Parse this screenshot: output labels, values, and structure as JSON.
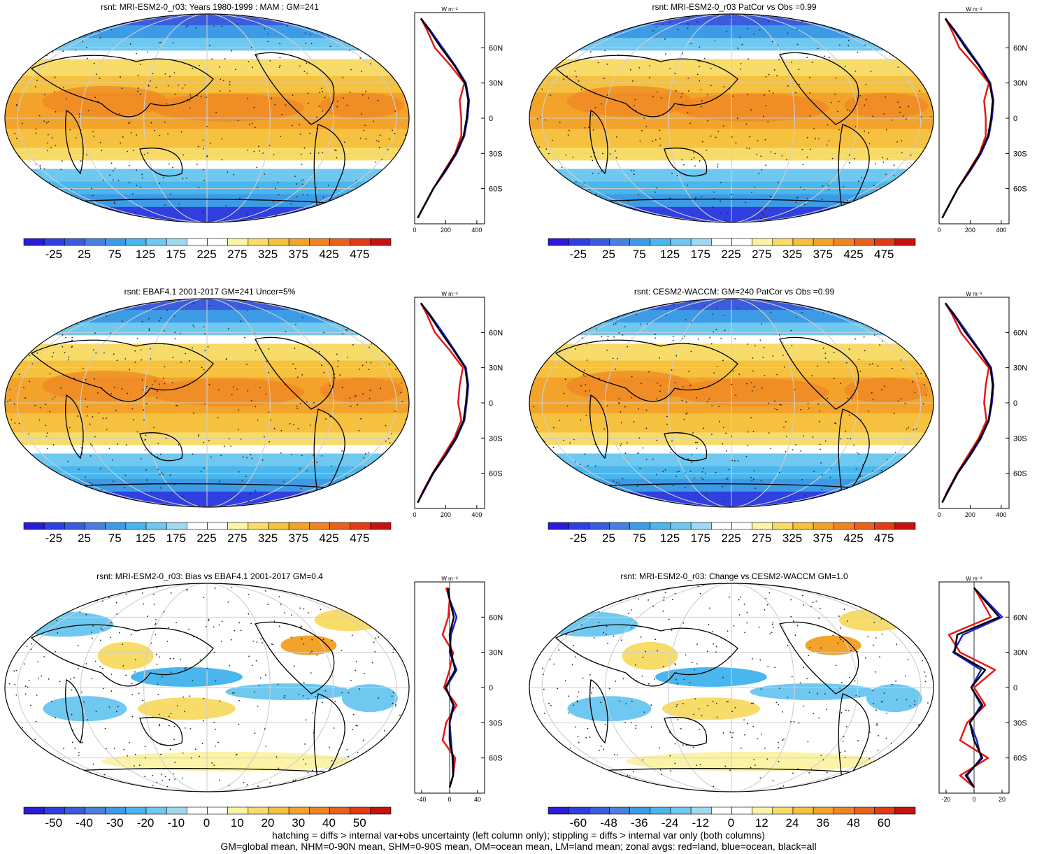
{
  "colors": {
    "full": [
      "#2b1bd6",
      "#2f3fe0",
      "#3a5cdd",
      "#4a7ee0",
      "#3d9be6",
      "#49b6ee",
      "#6fc8f0",
      "#9fd8f0",
      "#ffffff",
      "#ffffff",
      "#fbf3a6",
      "#f8dc6a",
      "#f5c13e",
      "#f3a32a",
      "#ee8524",
      "#e8621c",
      "#e33b15",
      "#c8100f"
    ],
    "diff": [
      "#2b1bd6",
      "#2f3fe0",
      "#3a5cdd",
      "#4a7ee0",
      "#3d9be6",
      "#49b6ee",
      "#6fc8f0",
      "#9fd8f0",
      "#ffffff",
      "#ffffff",
      "#fbf3a6",
      "#f8dc6a",
      "#f5c13e",
      "#f3a32a",
      "#ee8524",
      "#e8621c",
      "#e33b15",
      "#c8100f"
    ],
    "land": "#e8171a",
    "ocean": "#1a22d8",
    "all": "#000000"
  },
  "panels": [
    {
      "title": "rsnt: MRI-ESM2-0_r03: Years 1980-1999 : MAM : GM=241",
      "kind": "full",
      "cbar_labels": [
        "-25",
        "25",
        "75",
        "125",
        "175",
        "225",
        "275",
        "325",
        "375",
        "425",
        "475"
      ],
      "zonal_unit": "W m⁻²",
      "zonal_xticks": [
        "0",
        "200",
        "400"
      ],
      "zonal_xlim": [
        0,
        450
      ],
      "lat_labels": [
        "60N",
        "30N",
        "0",
        "30S",
        "60S"
      ]
    },
    {
      "title": "rsnt: MRI-ESM2-0_r03 PatCor vs Obs =0.99",
      "kind": "full",
      "cbar_labels": [
        "-25",
        "25",
        "75",
        "125",
        "175",
        "225",
        "275",
        "325",
        "375",
        "425",
        "475"
      ],
      "zonal_unit": "W m⁻²",
      "zonal_xticks": [
        "0",
        "200",
        "400"
      ],
      "zonal_xlim": [
        0,
        450
      ],
      "lat_labels": [
        "60N",
        "30N",
        "0",
        "30S",
        "60S"
      ]
    },
    {
      "title": "rsnt: EBAF4.1 2001-2017 GM=241 Uncer=5%",
      "kind": "full",
      "cbar_labels": [
        "-25",
        "25",
        "75",
        "125",
        "175",
        "225",
        "275",
        "325",
        "375",
        "425",
        "475"
      ],
      "zonal_unit": "W m⁻²",
      "zonal_xticks": [
        "0",
        "200",
        "400"
      ],
      "zonal_xlim": [
        0,
        450
      ],
      "lat_labels": [
        "60N",
        "30N",
        "0",
        "30S",
        "60S"
      ]
    },
    {
      "title": "rsnt: CESM2-WACCM: GM=240 PatCor vs Obs =0.99",
      "kind": "full",
      "cbar_labels": [
        "-25",
        "25",
        "75",
        "125",
        "175",
        "225",
        "275",
        "325",
        "375",
        "425",
        "475"
      ],
      "zonal_unit": "W m⁻²",
      "zonal_xticks": [
        "0",
        "200",
        "400"
      ],
      "zonal_xlim": [
        0,
        450
      ],
      "lat_labels": [
        "60N",
        "30N",
        "0",
        "30S",
        "60S"
      ]
    },
    {
      "title": "rsnt: MRI-ESM2-0_r03: Bias vs EBAF4.1 2001-2017 GM=0.4",
      "kind": "diff",
      "cbar_labels": [
        "-50",
        "-40",
        "-30",
        "-20",
        "-10",
        "0",
        "10",
        "20",
        "30",
        "40",
        "50"
      ],
      "zonal_unit": "W m⁻²",
      "zonal_xticks": [
        "-40",
        "0",
        "40"
      ],
      "zonal_xlim": [
        -50,
        50
      ],
      "lat_labels": [
        "60N",
        "30N",
        "0",
        "30S",
        "60S"
      ]
    },
    {
      "title": "rsnt: MRI-ESM2-0_r03: Change vs CESM2-WACCM GM=1.0",
      "kind": "diff",
      "cbar_labels": [
        "-60",
        "-48",
        "-36",
        "-24",
        "-12",
        "0",
        "12",
        "24",
        "36",
        "48",
        "60"
      ],
      "zonal_unit": "W m⁻²",
      "zonal_xticks": [
        "-20",
        "0",
        "20"
      ],
      "zonal_xlim": [
        -25,
        25
      ],
      "lat_labels": [
        "60N",
        "30N",
        "0",
        "30S",
        "60S"
      ]
    }
  ],
  "footer": {
    "line1": "hatching = diffs > internal var+obs uncertainty (left column only); stippling = diffs > internal var only (both columns)",
    "line2": "GM=global mean, NHM=0-90N mean, SHM=0-90S mean, OM=ocean mean, LM=land mean; zonal avgs: red=land, blue=ocean, black=all"
  },
  "chart_data": [
    {
      "type": "line",
      "title": "rsnt: MRI-ESM2-0_r03: Years 1980-1999 : MAM : GM=241",
      "xlabel": "W m-2",
      "lat": [
        85,
        75,
        60,
        45,
        30,
        15,
        0,
        -15,
        -30,
        -45,
        -60,
        -75,
        -85
      ],
      "series": [
        {
          "color": "land",
          "values": [
            40,
            80,
            130,
            230,
            320,
            290,
            300,
            300,
            260,
            190,
            120,
            60,
            20
          ]
        },
        {
          "color": "ocean",
          "values": [
            40,
            100,
            180,
            260,
            330,
            350,
            340,
            320,
            270,
            200,
            120,
            60,
            20
          ]
        },
        {
          "color": "all",
          "values": [
            40,
            95,
            170,
            255,
            325,
            345,
            335,
            315,
            265,
            195,
            120,
            60,
            20
          ]
        }
      ]
    },
    {
      "type": "line",
      "title": "rsnt: MRI-ESM2-0_r03 PatCor vs Obs =0.99",
      "xlabel": "W m-2",
      "lat": [
        85,
        75,
        60,
        45,
        30,
        15,
        0,
        -15,
        -30,
        -45,
        -60,
        -75,
        -85
      ],
      "series": [
        {
          "color": "land",
          "values": [
            40,
            80,
            130,
            230,
            320,
            290,
            300,
            300,
            260,
            190,
            120,
            60,
            20
          ]
        },
        {
          "color": "ocean",
          "values": [
            40,
            100,
            180,
            260,
            330,
            350,
            340,
            320,
            270,
            200,
            120,
            60,
            20
          ]
        },
        {
          "color": "all",
          "values": [
            40,
            95,
            170,
            255,
            325,
            345,
            335,
            315,
            265,
            195,
            120,
            60,
            20
          ]
        }
      ]
    },
    {
      "type": "line",
      "title": "rsnt: EBAF4.1 2001-2017 GM=241 Uncer=5%",
      "xlabel": "W m-2",
      "lat": [
        85,
        75,
        60,
        45,
        30,
        15,
        0,
        -15,
        -30,
        -45,
        -60,
        -75,
        -85
      ],
      "series": [
        {
          "color": "land",
          "values": [
            40,
            80,
            130,
            225,
            310,
            290,
            280,
            300,
            255,
            185,
            115,
            55,
            20
          ]
        },
        {
          "color": "ocean",
          "values": [
            40,
            100,
            180,
            255,
            330,
            345,
            335,
            320,
            270,
            200,
            120,
            60,
            20
          ]
        },
        {
          "color": "all",
          "values": [
            40,
            95,
            170,
            250,
            325,
            340,
            330,
            315,
            265,
            195,
            118,
            58,
            20
          ]
        }
      ]
    },
    {
      "type": "line",
      "title": "rsnt: CESM2-WACCM: GM=240 PatCor vs Obs =0.99",
      "xlabel": "W m-2",
      "lat": [
        85,
        75,
        60,
        45,
        30,
        15,
        0,
        -15,
        -30,
        -45,
        -60,
        -75,
        -85
      ],
      "series": [
        {
          "color": "land",
          "values": [
            40,
            85,
            140,
            230,
            320,
            300,
            290,
            305,
            255,
            185,
            115,
            55,
            20
          ]
        },
        {
          "color": "ocean",
          "values": [
            40,
            100,
            180,
            260,
            335,
            350,
            340,
            320,
            270,
            200,
            120,
            60,
            20
          ]
        },
        {
          "color": "all",
          "values": [
            40,
            95,
            170,
            255,
            330,
            345,
            335,
            318,
            265,
            195,
            118,
            58,
            20
          ]
        }
      ]
    },
    {
      "type": "line",
      "title": "rsnt: MRI-ESM2-0_r03: Bias vs EBAF4.1 2001-2017 GM=0.4",
      "xlabel": "W m-2",
      "lat": [
        85,
        75,
        60,
        45,
        30,
        15,
        0,
        -15,
        -30,
        -45,
        -60,
        -75,
        -85
      ],
      "series": [
        {
          "color": "land",
          "values": [
            -5,
            0,
            -2,
            -10,
            5,
            0,
            -8,
            10,
            -5,
            -10,
            8,
            5,
            0
          ]
        },
        {
          "color": "ocean",
          "values": [
            -2,
            0,
            10,
            2,
            0,
            10,
            -5,
            5,
            0,
            2,
            4,
            5,
            0
          ]
        },
        {
          "color": "all",
          "values": [
            -3,
            0,
            6,
            0,
            2,
            8,
            -6,
            6,
            0,
            0,
            5,
            5,
            0
          ]
        }
      ]
    },
    {
      "type": "line",
      "title": "rsnt: MRI-ESM2-0_r03: Change vs CESM2-WACCM GM=1.0",
      "xlabel": "W m-2",
      "lat": [
        85,
        75,
        60,
        45,
        30,
        15,
        0,
        -15,
        -30,
        -45,
        -60,
        -75,
        -85
      ],
      "series": [
        {
          "color": "land",
          "values": [
            0,
            5,
            12,
            -18,
            -10,
            15,
            0,
            8,
            -5,
            -10,
            10,
            -10,
            0
          ]
        },
        {
          "color": "ocean",
          "values": [
            0,
            8,
            20,
            -8,
            -15,
            5,
            -2,
            5,
            -3,
            2,
            5,
            -5,
            0
          ]
        },
        {
          "color": "all",
          "values": [
            0,
            7,
            18,
            -12,
            -14,
            8,
            -2,
            6,
            -3,
            0,
            6,
            -6,
            0
          ]
        }
      ]
    }
  ]
}
